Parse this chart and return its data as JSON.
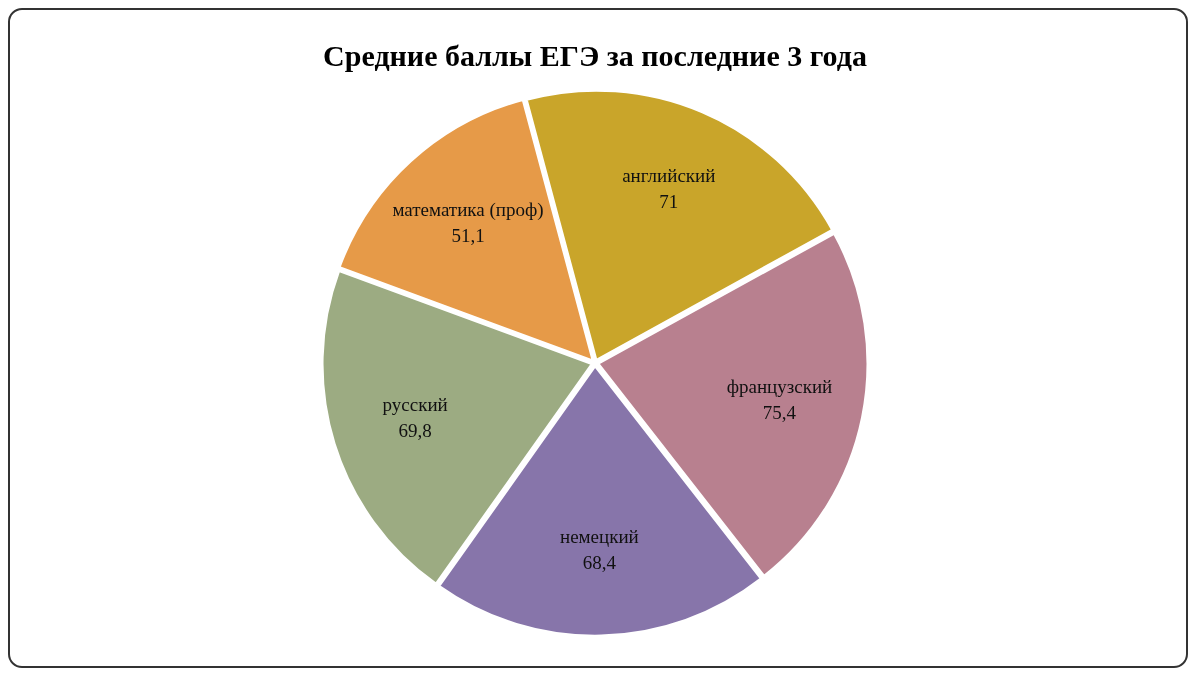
{
  "chart_data": {
    "type": "pie",
    "title": "Средние баллы ЕГЭ за последние 3 года",
    "categories": [
      "английский",
      "французский",
      "немецкий",
      "русский",
      "математика (проф)"
    ],
    "values": [
      71,
      75.4,
      68.4,
      69.8,
      51.1
    ],
    "value_labels": [
      "71",
      "75,4",
      "68,4",
      "69,8",
      "51,1"
    ],
    "colors": [
      "#c9a52a",
      "#b8808f",
      "#8775aa",
      "#9cab82",
      "#e69a48"
    ],
    "legend": false
  }
}
